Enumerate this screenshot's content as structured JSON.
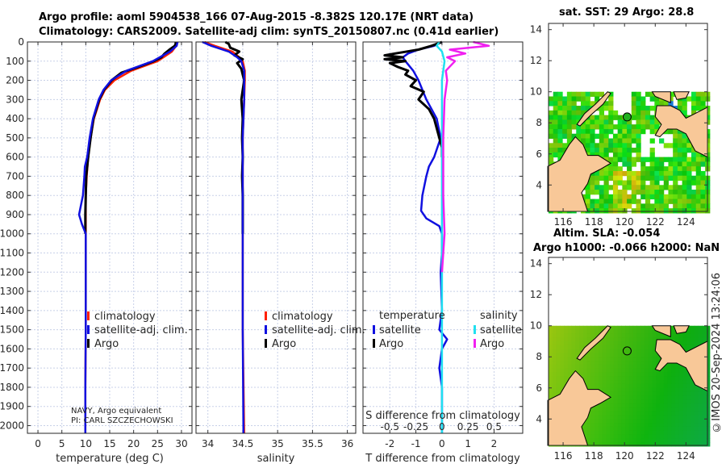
{
  "titles": {
    "line1": "Argo profile: aoml 5904538_166 07-Aug-2015 -8.382S 120.17E (NRT data)",
    "line2": "Climatology: CARS2009. Satellite-adj clim: synTS_20150807.nc (0.41d earlier)",
    "map1": "sat. SST: 29 Argo: 28.8",
    "map2a": "Altim. SLA: -0.054",
    "map2b": "Argo h1000: -0.066 h2000: NaN",
    "copyright": "©IMOS 20-Sep-2024 13:24:06"
  },
  "colors": {
    "climatology": "#ff2000",
    "satellite": "#1010e0",
    "argo": "#000000",
    "sal_satellite": "#20e0f0",
    "sal_argo": "#f020f0"
  },
  "chart_data": [
    {
      "type": "line",
      "id": "temp",
      "xlabel": "temperature (deg C)",
      "ylabel": "",
      "xlim": [
        -2.2,
        32.2
      ],
      "ylim": [
        2040,
        0
      ],
      "xticks": [
        0,
        5,
        10,
        15,
        20,
        25,
        30
      ],
      "xticklabels": [
        "0",
        "5",
        "10",
        "15",
        "20",
        "25",
        "30"
      ],
      "yticks": [
        0,
        100,
        200,
        300,
        400,
        500,
        600,
        700,
        800,
        900,
        1000,
        1100,
        1200,
        1300,
        1400,
        1500,
        1600,
        1700,
        1800,
        1900,
        2000
      ],
      "legend": [
        "climatology",
        "satellite-adj. clim.",
        "Argo"
      ],
      "annotation": [
        "NAVY, Argo equivalent",
        "PI: CARL SZCZECHOWSKI"
      ],
      "series": [
        {
          "name": "climatology",
          "color": "#ff2000",
          "depth": [
            0,
            20,
            50,
            100,
            150,
            200,
            250,
            300,
            400,
            500,
            600,
            700,
            800,
            900,
            1000,
            1200,
            1500,
            1800,
            2040
          ],
          "values": [
            29,
            28.9,
            28,
            25,
            19.5,
            16,
            14,
            13,
            11.7,
            11,
            10.5,
            10.2,
            10,
            10,
            10,
            10,
            10,
            9.9,
            9.9
          ]
        },
        {
          "name": "satellite-adj. clim.",
          "color": "#1010e0",
          "depth": [
            0,
            20,
            50,
            100,
            150,
            200,
            250,
            300,
            400,
            500,
            600,
            650,
            700,
            800,
            900,
            950,
            1000,
            1200,
            1500,
            1800,
            2040
          ],
          "values": [
            29.2,
            29,
            27.6,
            24,
            18.5,
            15.3,
            13.7,
            12.7,
            11.5,
            10.8,
            10.3,
            9.8,
            9.7,
            9.4,
            8.6,
            9.2,
            10,
            10,
            10,
            9.9,
            9.9
          ]
        },
        {
          "name": "Argo",
          "color": "#000000",
          "depth": [
            0,
            10,
            20,
            40,
            60,
            80,
            100,
            130,
            160,
            200,
            250,
            300,
            400,
            500,
            600,
            700,
            800,
            900,
            1000
          ],
          "values": [
            28.8,
            28.8,
            28.6,
            27.5,
            26.5,
            25.8,
            24.2,
            21,
            17.5,
            15.4,
            13.8,
            12.8,
            11.6,
            11,
            10.5,
            10.1,
            10,
            9.9,
            9.9
          ]
        }
      ]
    },
    {
      "type": "line",
      "id": "sal",
      "xlabel": "salinity",
      "xlim": [
        33.83,
        36.12
      ],
      "ylim": [
        2040,
        0
      ],
      "xticks": [
        34,
        34.5,
        35,
        35.5,
        36
      ],
      "xticklabels": [
        "34",
        "34.5",
        "35",
        "35.5",
        "36"
      ],
      "legend": [
        "climatology",
        "satellite-adj. clim.",
        "Argo"
      ],
      "series": [
        {
          "name": "climatology",
          "color": "#ff2000",
          "depth": [
            0,
            20,
            50,
            80,
            100,
            150,
            200,
            300,
            500,
            1000,
            1500,
            2040
          ],
          "values": [
            33.95,
            34.1,
            34.35,
            34.45,
            34.5,
            34.53,
            34.53,
            34.52,
            34.5,
            34.5,
            34.5,
            34.52
          ]
        },
        {
          "name": "satellite-adj. clim.",
          "color": "#1010e0",
          "depth": [
            0,
            20,
            50,
            80,
            100,
            150,
            200,
            300,
            500,
            1000,
            1500,
            2040
          ],
          "values": [
            33.92,
            34.05,
            34.3,
            34.42,
            34.48,
            34.52,
            34.52,
            34.52,
            34.5,
            34.5,
            34.5,
            34.51
          ]
        },
        {
          "name": "Argo",
          "color": "#000000",
          "depth": [
            0,
            10,
            30,
            50,
            70,
            90,
            110,
            140,
            170,
            200,
            300,
            400,
            500,
            600,
            700,
            800,
            900,
            1000
          ],
          "values": [
            34.25,
            34.3,
            34.32,
            34.45,
            34.38,
            34.5,
            34.42,
            34.48,
            34.5,
            34.52,
            34.48,
            34.5,
            34.49,
            34.5,
            34.49,
            34.5,
            34.5,
            34.5
          ]
        }
      ]
    },
    {
      "type": "line",
      "id": "diff",
      "xlabel": "T difference from climatology",
      "xlabel2": "S difference from climatology",
      "xlim": [
        -3.03,
        3.1
      ],
      "ylim": [
        2040,
        0
      ],
      "xticks": [
        -2,
        -1,
        0,
        1,
        2
      ],
      "xticklabels": [
        "-2",
        "-1",
        "0",
        "1",
        "2"
      ],
      "xticks2": [
        -2,
        -1,
        0,
        1,
        2
      ],
      "xticklabels2": [
        "-0.5",
        "-0.25",
        "0",
        "0.25",
        "0.5"
      ],
      "legend_temperature": {
        "title": "temperature",
        "items": [
          "satellite",
          "Argo"
        ]
      },
      "legend_salinity": {
        "title": "salinity",
        "items": [
          "satellite",
          "Argo"
        ]
      },
      "series": [
        {
          "name": "T satellite",
          "color": "#1010e0",
          "depth": [
            0,
            20,
            40,
            60,
            80,
            100,
            150,
            200,
            300,
            400,
            500,
            600,
            650,
            700,
            800,
            880,
            920,
            960,
            1000,
            1100,
            1200,
            1400,
            1500,
            1550,
            1600,
            1700,
            1800,
            2040
          ],
          "values": [
            0,
            -0.3,
            -0.9,
            -1.3,
            -1.5,
            -1.4,
            -1.1,
            -0.9,
            -0.6,
            -0.2,
            -0.05,
            -0.3,
            -0.5,
            -0.6,
            -0.75,
            -0.8,
            -0.6,
            -0.1,
            0,
            0,
            -0.05,
            0,
            -0.1,
            0.2,
            0,
            -0.1,
            0,
            0
          ]
        },
        {
          "name": "T Argo",
          "color": "#000000",
          "depth": [
            0,
            20,
            40,
            60,
            70,
            80,
            90,
            100,
            110,
            130,
            150,
            170,
            200,
            230,
            260,
            300,
            350,
            400,
            450,
            500,
            550,
            600
          ],
          "values": [
            0,
            -0.4,
            -0.9,
            -1.8,
            -2.2,
            -1.5,
            -2.2,
            -1.4,
            -2.0,
            -1.7,
            -1.3,
            -1.4,
            -1.0,
            -1.2,
            -0.7,
            -0.9,
            -0.5,
            -0.3,
            -0.2,
            -0.1,
            0,
            0
          ]
        },
        {
          "name": "S satellite",
          "color": "#20e0f0",
          "depth": [
            0,
            20,
            50,
            100,
            200,
            500,
            1000,
            1500,
            2040
          ],
          "values": [
            -0.1,
            -0.2,
            0,
            0.1,
            0,
            0,
            0,
            0,
            0
          ]
        },
        {
          "name": "S Argo",
          "color": "#f020f0",
          "depth": [
            0,
            20,
            40,
            60,
            80,
            100,
            150,
            200,
            300,
            500,
            800,
            1000,
            1200
          ],
          "values": [
            1.2,
            1.8,
            0.3,
            0.9,
            0.2,
            0.5,
            0.15,
            0.2,
            0.1,
            0.05,
            0.05,
            0.1,
            0
          ]
        }
      ]
    }
  ],
  "maps": {
    "lon_ticks": [
      "116",
      "118",
      "120",
      "122",
      "124"
    ],
    "lat_ticks": [
      "4",
      "6",
      "8",
      "10",
      "12",
      "14"
    ],
    "argo_position": {
      "lon": 120.17,
      "lat": 8.382
    }
  }
}
